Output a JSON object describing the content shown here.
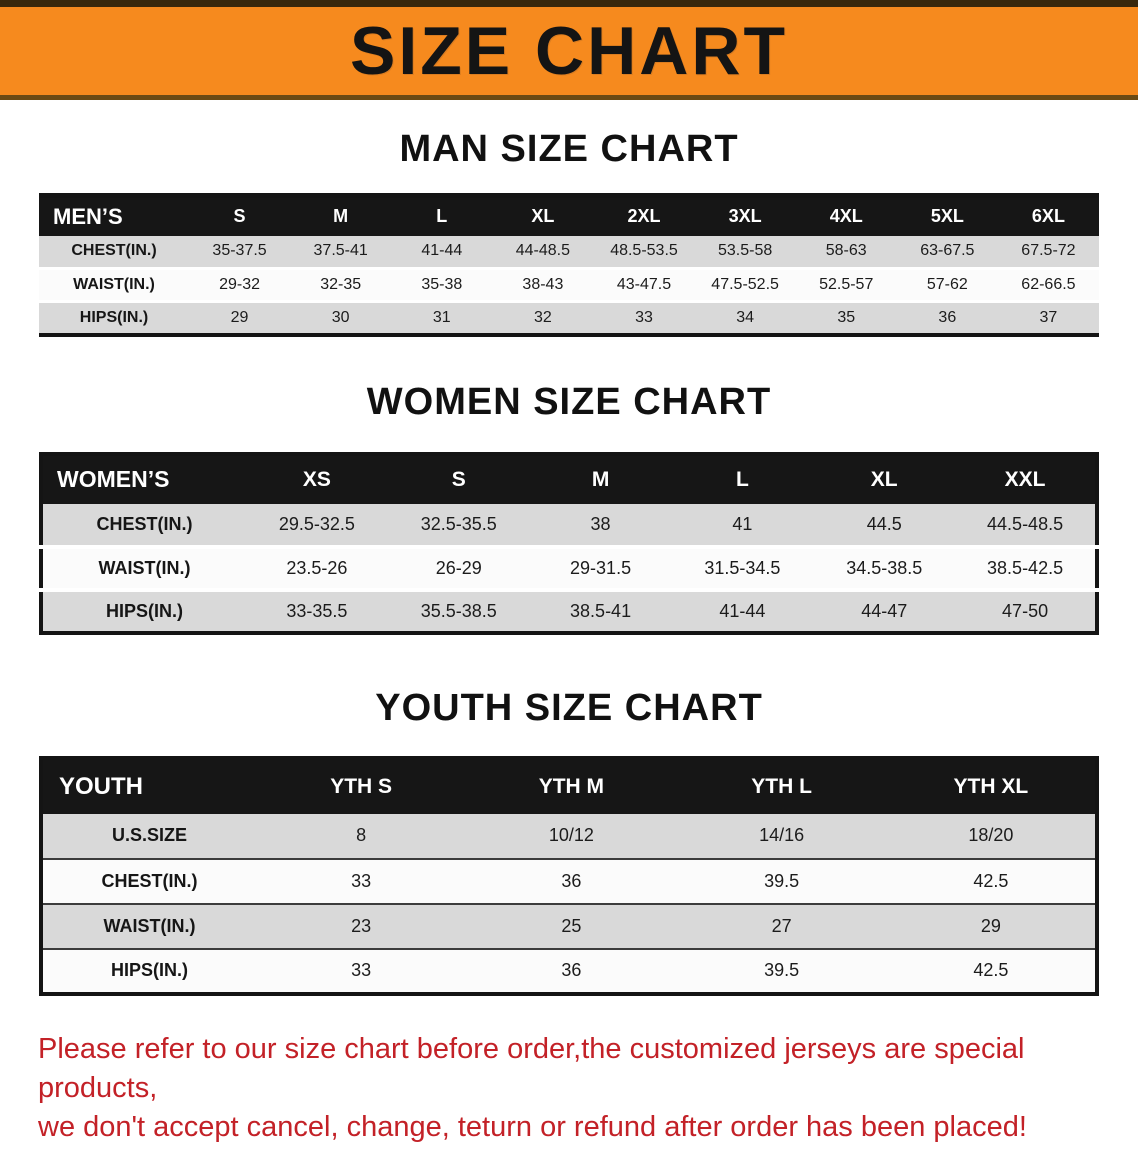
{
  "banner": {
    "title": "SIZE CHART",
    "bg_color": "#f68a1e",
    "text_color": "#141414"
  },
  "tables": [
    {
      "id": "men",
      "heading": "MAN SIZE CHART",
      "header": [
        "MEN’S",
        "S",
        "M",
        "L",
        "XL",
        "2XL",
        "3XL",
        "4XL",
        "5XL",
        "6XL"
      ],
      "rows": [
        [
          "CHEST(IN.)",
          "35-37.5",
          "37.5-41",
          "41-44",
          "44-48.5",
          "48.5-53.5",
          "53.5-58",
          "58-63",
          "63-67.5",
          "67.5-72"
        ],
        [
          "WAIST(IN.)",
          "29-32",
          "32-35",
          "35-38",
          "38-43",
          "43-47.5",
          "47.5-52.5",
          "52.5-57",
          "57-62",
          "62-66.5"
        ],
        [
          "HIPS(IN.)",
          "29",
          "30",
          "31",
          "32",
          "33",
          "34",
          "35",
          "36",
          "37"
        ]
      ]
    },
    {
      "id": "women",
      "heading": "WOMEN SIZE CHART",
      "header": [
        "WOMEN’S",
        "XS",
        "S",
        "M",
        "L",
        "XL",
        "XXL"
      ],
      "rows": [
        [
          "CHEST(IN.)",
          "29.5-32.5",
          "32.5-35.5",
          "38",
          "41",
          "44.5",
          "44.5-48.5"
        ],
        [
          "WAIST(IN.)",
          "23.5-26",
          "26-29",
          "29-31.5",
          "31.5-34.5",
          "34.5-38.5",
          "38.5-42.5"
        ],
        [
          "HIPS(IN.)",
          "33-35.5",
          "35.5-38.5",
          "38.5-41",
          "41-44",
          "44-47",
          "47-50"
        ]
      ]
    },
    {
      "id": "youth",
      "heading": "YOUTH SIZE CHART",
      "header": [
        "YOUTH",
        "YTH S",
        "YTH M",
        "YTH L",
        "YTH XL"
      ],
      "rows": [
        [
          "U.S.SIZE",
          "8",
          "10/12",
          "14/16",
          "18/20"
        ],
        [
          "CHEST(IN.)",
          "33",
          "36",
          "39.5",
          "42.5"
        ],
        [
          "WAIST(IN.)",
          "23",
          "25",
          "27",
          "29"
        ],
        [
          "HIPS(IN.)",
          "33",
          "36",
          "39.5",
          "42.5"
        ]
      ]
    }
  ],
  "footer": {
    "lines": [
      "Please refer to our size chart before order,the customized jerseys are special products,",
      "we don't accept cancel, change, teturn or refund after order has been placed!"
    ],
    "text_color": "#c32127"
  }
}
